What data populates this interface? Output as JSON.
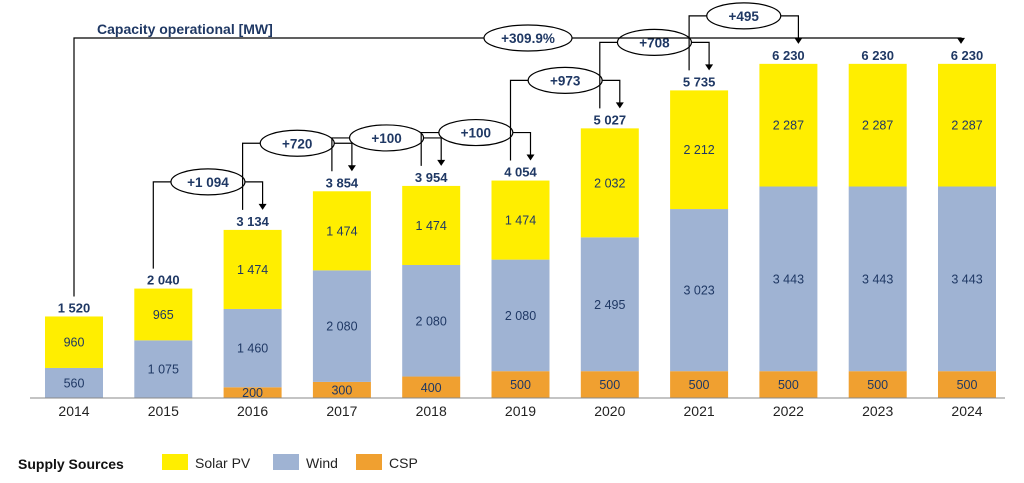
{
  "chart_data": {
    "type": "bar",
    "stacked": true,
    "title": "Capacity operational [MW]",
    "categories": [
      "2014",
      "2015",
      "2016",
      "2017",
      "2018",
      "2019",
      "2020",
      "2021",
      "2022",
      "2023",
      "2024"
    ],
    "series": [
      {
        "name": "CSP",
        "color": "#f0a030",
        "values": [
          0,
          0,
          200,
          300,
          400,
          500,
          500,
          500,
          500,
          500,
          500
        ]
      },
      {
        "name": "Wind",
        "color": "#9fb3d3",
        "values": [
          560,
          1075,
          1460,
          2080,
          2080,
          2080,
          2495,
          3023,
          3443,
          3443,
          3443
        ]
      },
      {
        "name": "Solar PV",
        "color": "#ffee00",
        "values": [
          960,
          965,
          1474,
          1474,
          1474,
          1474,
          2032,
          2212,
          2287,
          2287,
          2287
        ]
      }
    ],
    "segment_labels": {
      "CSP": [
        "",
        "",
        "200",
        "300",
        "400",
        "500",
        "500",
        "500",
        "500",
        "500",
        "500"
      ],
      "Wind": [
        "560",
        "1 075",
        "1 460",
        "2 080",
        "2 080",
        "2 080",
        "2 495",
        "3 023",
        "3 443",
        "3 443",
        "3 443"
      ],
      "Solar PV": [
        "960",
        "965",
        "1 474",
        "1 474",
        "1 474",
        "1 474",
        "2 032",
        "2 212",
        "2 287",
        "2 287",
        "2 287"
      ]
    },
    "totals": [
      "1 520",
      "2 040",
      "3 134",
      "3 854",
      "3 954",
      "4 054",
      "5 027",
      "5 735",
      "6 230",
      "6 230",
      "6 230"
    ],
    "deltas": [
      {
        "from": 1,
        "to": 2,
        "label": "+1 094"
      },
      {
        "from": 2,
        "to": 3,
        "label": "+720"
      },
      {
        "from": 3,
        "to": 4,
        "label": "+100"
      },
      {
        "from": 4,
        "to": 5,
        "label": "+100"
      },
      {
        "from": 5,
        "to": 6,
        "label": "+973"
      },
      {
        "from": 6,
        "to": 7,
        "label": "+708"
      },
      {
        "from": 7,
        "to": 8,
        "label": "+495"
      }
    ],
    "overall_delta": {
      "from": 0,
      "to": 10,
      "label": "+309.9%"
    },
    "ylim": [
      0,
      6600
    ],
    "legend": {
      "title": "Supply Sources",
      "position": "bottom-left",
      "order": [
        "Solar PV",
        "Wind",
        "CSP"
      ]
    }
  }
}
